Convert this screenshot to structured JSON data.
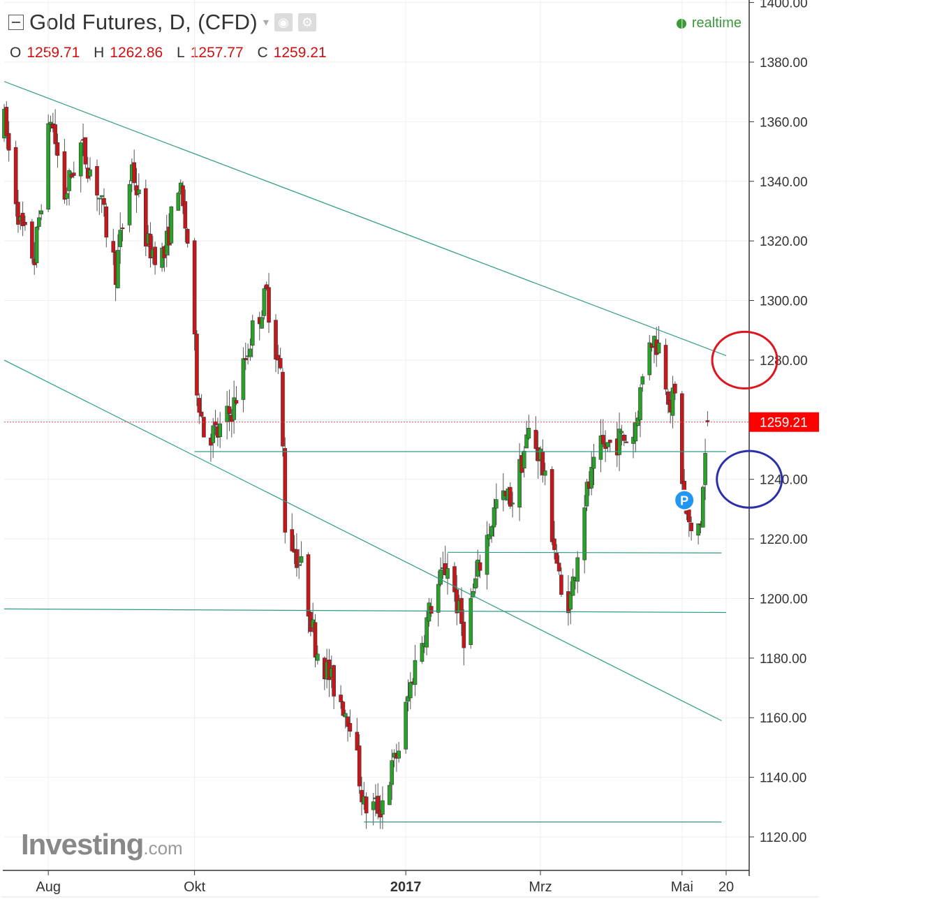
{
  "header": {
    "title": "Gold Futures, D, (CFD)",
    "realtime_label": "realtime",
    "ohlc": [
      {
        "key": "O",
        "value": "1259.71"
      },
      {
        "key": "H",
        "value": "1262.86"
      },
      {
        "key": "L",
        "value": "1257.77"
      },
      {
        "key": "C",
        "value": "1259.21"
      }
    ]
  },
  "watermark": {
    "brand": "Investing",
    "suffix": ".com"
  },
  "colors": {
    "up": "#27a327",
    "down": "#c8161b",
    "trendline": "#2e9c84",
    "price_tag": "#ff0000",
    "circle_resistance": "#e0141e",
    "circle_support": "#2b2fa8",
    "marker": "#2196f3"
  },
  "chart_data": {
    "type": "candlestick",
    "y_ticks": [
      "1400.00",
      "1380.00",
      "1360.00",
      "1340.00",
      "1320.00",
      "1300.00",
      "1280.00",
      "1260.00",
      "1240.00",
      "1220.00",
      "1200.00",
      "1180.00",
      "1160.00",
      "1140.00",
      "1120.00"
    ],
    "y_tick_values": [
      1400,
      1380,
      1360,
      1340,
      1320,
      1300,
      1280,
      1260,
      1240,
      1220,
      1200,
      1180,
      1160,
      1140,
      1120
    ],
    "ylim": [
      1108,
      1404
    ],
    "x_labels": [
      {
        "label": "Aug",
        "date": "2016-08-01"
      },
      {
        "label": "Okt",
        "date": "2016-10-03"
      },
      {
        "label": "2017",
        "date": "2017-01-02"
      },
      {
        "label": "Mrz",
        "date": "2017-03-01"
      },
      {
        "label": "Mai",
        "date": "2017-05-01"
      },
      {
        "label": "20",
        "date": "2017-05-20"
      }
    ],
    "xlim": [
      "2016-07-13",
      "2017-05-20"
    ],
    "last_price": "1259.21",
    "last_price_value": 1259.21,
    "marker_label": "P",
    "marker": {
      "date": "2017-05-02",
      "value": 1233
    },
    "waypoints": [
      [
        "2016-07-13",
        1360
      ],
      [
        "2016-07-20",
        1325
      ],
      [
        "2016-07-26",
        1314
      ],
      [
        "2016-08-02",
        1362
      ],
      [
        "2016-08-08",
        1335
      ],
      [
        "2016-08-15",
        1352
      ],
      [
        "2016-08-22",
        1338
      ],
      [
        "2016-08-30",
        1310
      ],
      [
        "2016-09-06",
        1345
      ],
      [
        "2016-09-13",
        1318
      ],
      [
        "2016-09-20",
        1315
      ],
      [
        "2016-09-26",
        1340
      ],
      [
        "2016-09-30",
        1320
      ],
      [
        "2016-10-04",
        1272
      ],
      [
        "2016-10-07",
        1256
      ],
      [
        "2016-10-13",
        1255
      ],
      [
        "2016-10-20",
        1265
      ],
      [
        "2016-10-28",
        1290
      ],
      [
        "2016-11-03",
        1302
      ],
      [
        "2016-11-09",
        1275
      ],
      [
        "2016-11-11",
        1225
      ],
      [
        "2016-11-18",
        1210
      ],
      [
        "2016-11-24",
        1185
      ],
      [
        "2016-12-01",
        1172
      ],
      [
        "2016-12-09",
        1160
      ],
      [
        "2016-12-15",
        1130
      ],
      [
        "2016-12-22",
        1130
      ],
      [
        "2016-12-30",
        1150
      ],
      [
        "2017-01-05",
        1175
      ],
      [
        "2017-01-13",
        1198
      ],
      [
        "2017-01-20",
        1212
      ],
      [
        "2017-01-27",
        1188
      ],
      [
        "2017-02-03",
        1212
      ],
      [
        "2017-02-10",
        1232
      ],
      [
        "2017-02-17",
        1234
      ],
      [
        "2017-02-24",
        1256
      ],
      [
        "2017-03-01",
        1248
      ],
      [
        "2017-03-07",
        1218
      ],
      [
        "2017-03-10",
        1200
      ],
      [
        "2017-03-14",
        1200
      ],
      [
        "2017-03-20",
        1233
      ],
      [
        "2017-03-27",
        1250
      ],
      [
        "2017-04-03",
        1253
      ],
      [
        "2017-04-10",
        1255
      ],
      [
        "2017-04-17",
        1288
      ],
      [
        "2017-04-21",
        1285
      ],
      [
        "2017-04-26",
        1266
      ],
      [
        "2017-04-28",
        1267
      ],
      [
        "2017-05-02",
        1232
      ],
      [
        "2017-05-05",
        1220
      ],
      [
        "2017-05-09",
        1226
      ],
      [
        "2017-05-12",
        1259.21
      ]
    ],
    "lines": [
      {
        "name": "descending-resistance",
        "from": [
          "2016-07-13",
          1373.5
        ],
        "to": [
          "2017-05-20",
          1281.5
        ]
      },
      {
        "name": "descending-channel-low",
        "from": [
          "2016-07-13",
          1280
        ],
        "to": [
          "2017-05-18",
          1159
        ]
      },
      {
        "name": "horizontal-1249",
        "from": [
          "2016-10-03",
          1249.3
        ],
        "to": [
          "2017-05-20",
          1249.3
        ]
      },
      {
        "name": "horizontal-1215",
        "from": [
          "2017-01-20",
          1215.5
        ],
        "to": [
          "2017-05-18",
          1215.3
        ]
      },
      {
        "name": "horizontal-1196",
        "from": [
          "2016-07-13",
          1196.5
        ],
        "to": [
          "2017-05-20",
          1195.3
        ]
      },
      {
        "name": "horizontal-1125",
        "from": [
          "2016-12-15",
          1125
        ],
        "to": [
          "2017-05-18",
          1125
        ]
      }
    ],
    "annotations": [
      {
        "name": "resistance-ellipse",
        "center": [
          "2017-05-28",
          1280
        ],
        "rx_days": 14,
        "ry_value": 9.5
      },
      {
        "name": "support-ellipse",
        "center": [
          "2017-05-30",
          1240
        ],
        "rx_days": 14,
        "ry_value": 9.5
      }
    ],
    "grid": true,
    "legend": "none"
  }
}
